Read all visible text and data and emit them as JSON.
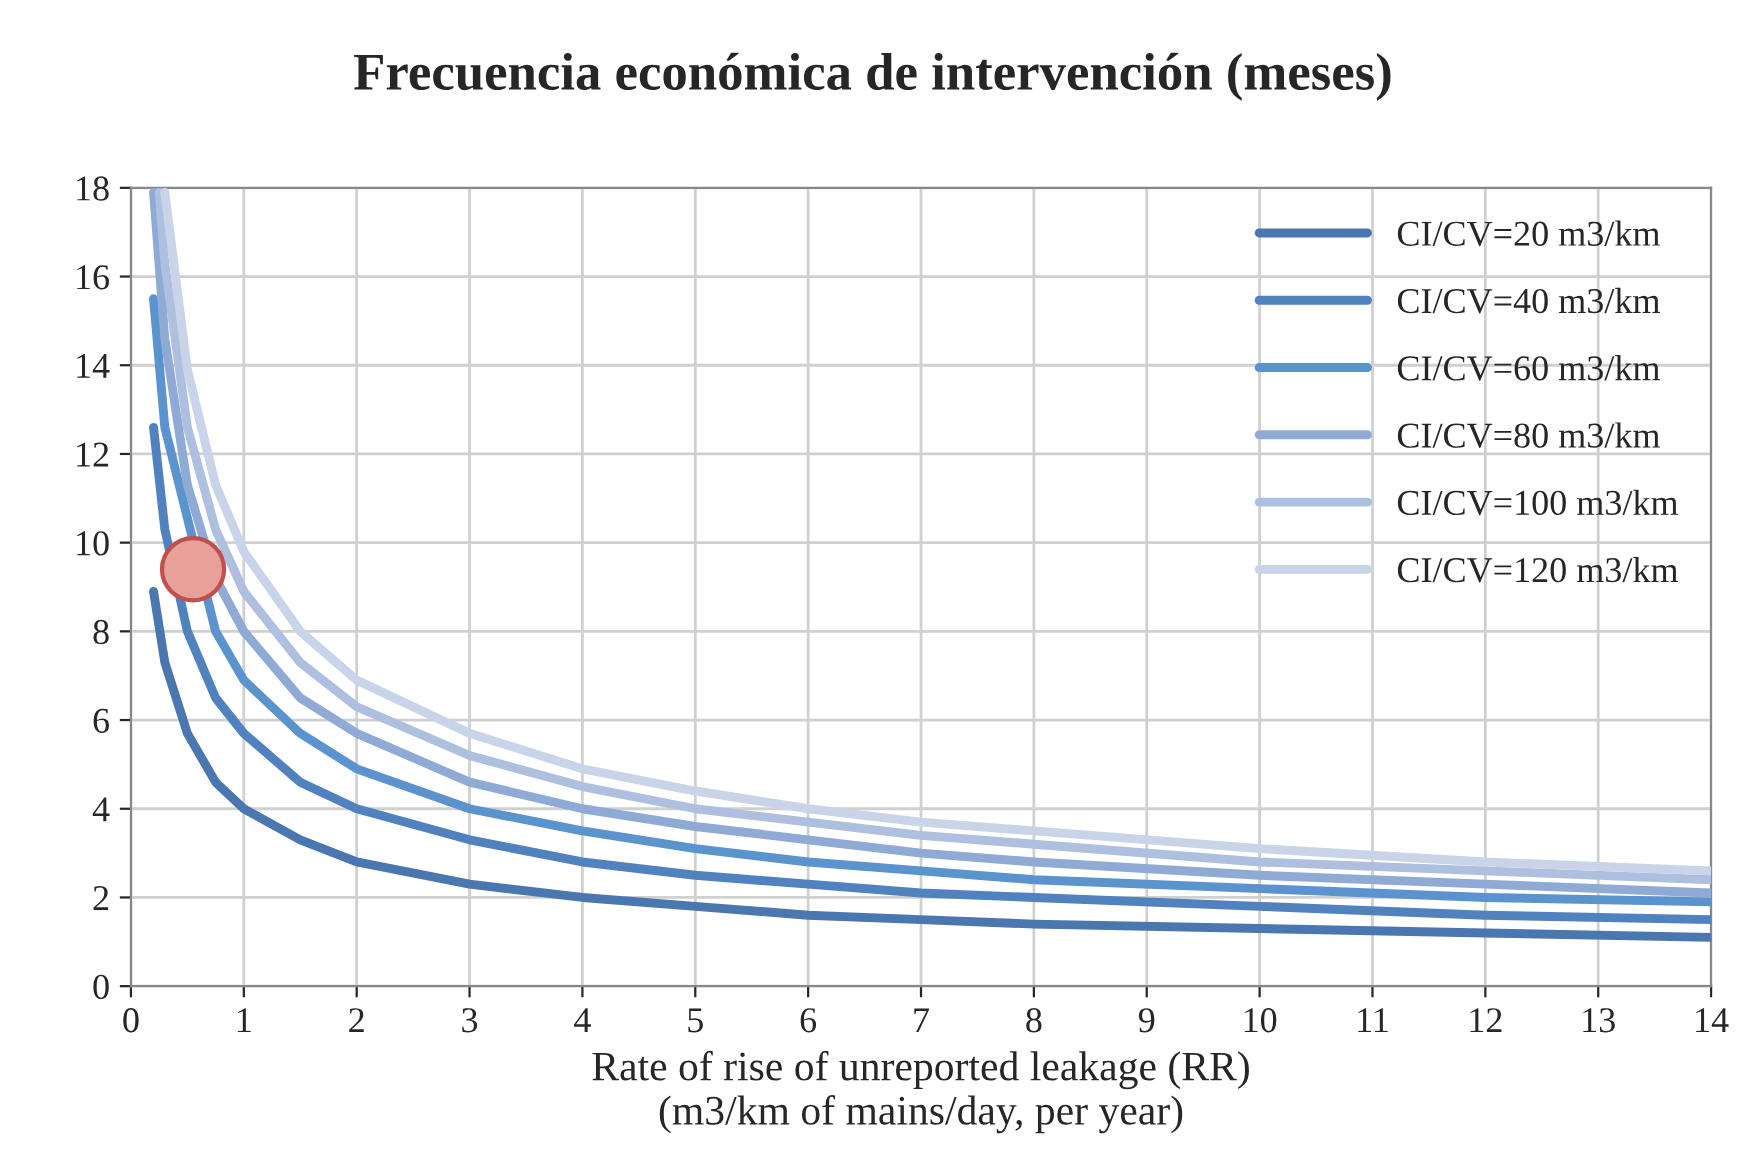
{
  "chart_data": {
    "type": "line",
    "title": "Frecuencia económica de intervención (meses)",
    "xlabel": "Rate of rise of unreported leakage (RR)\n(m3/km of mains/day, per year)",
    "xlim": [
      0,
      14
    ],
    "xticks": [
      0,
      1,
      2,
      3,
      4,
      5,
      6,
      7,
      8,
      9,
      10,
      11,
      12,
      13,
      14
    ],
    "ylim": [
      0,
      18
    ],
    "yticks": [
      0,
      2,
      4,
      6,
      8,
      10,
      12,
      14,
      16,
      18
    ],
    "grid": true,
    "legend": "top right",
    "marker": "none",
    "line_style": "solid",
    "series": [
      {
        "name": "CI/CV=20 m3/km",
        "color": "#4a77b0",
        "x": [
          0.2,
          0.3,
          0.5,
          0.75,
          1,
          1.5,
          2,
          3,
          4,
          5,
          6,
          7,
          8,
          10,
          12,
          14
        ],
        "values": [
          8.9,
          7.3,
          5.7,
          4.6,
          4.0,
          3.3,
          2.8,
          2.3,
          2.0,
          1.8,
          1.6,
          1.5,
          1.4,
          1.3,
          1.2,
          1.1
        ]
      },
      {
        "name": "CI/CV=40 m3/km",
        "color": "#4f82be",
        "x": [
          0.2,
          0.3,
          0.5,
          0.75,
          1,
          1.5,
          2,
          3,
          4,
          5,
          6,
          7,
          8,
          10,
          12,
          14
        ],
        "values": [
          12.6,
          10.3,
          8.0,
          6.5,
          5.7,
          4.6,
          4.0,
          3.3,
          2.8,
          2.5,
          2.3,
          2.1,
          2.0,
          1.8,
          1.6,
          1.5
        ]
      },
      {
        "name": "CI/CV=60 m3/km",
        "color": "#5b93cf",
        "x": [
          0.2,
          0.3,
          0.75,
          1,
          1.5,
          2,
          3,
          4,
          5,
          6,
          7,
          8,
          10,
          12,
          14
        ],
        "values": [
          15.5,
          12.6,
          8.0,
          6.9,
          5.7,
          4.9,
          4.0,
          3.5,
          3.1,
          2.8,
          2.6,
          2.4,
          2.2,
          2.0,
          1.9
        ]
      },
      {
        "name": "CI/CV=80 m3/km",
        "color": "#8eaad5",
        "x": [
          0.2,
          0.3,
          0.5,
          0.75,
          1,
          1.5,
          2,
          3,
          4,
          5,
          6,
          7,
          8,
          10,
          12,
          14
        ],
        "values": [
          17.9,
          14.6,
          11.3,
          9.2,
          8.0,
          6.5,
          5.7,
          4.6,
          4.0,
          3.6,
          3.3,
          3.0,
          2.8,
          2.5,
          2.3,
          2.1
        ]
      },
      {
        "name": "CI/CV=100 m3/km",
        "color": "#aebfdf",
        "x": [
          0.25,
          0.3,
          0.5,
          0.75,
          1,
          1.5,
          2,
          3,
          4,
          5,
          6,
          7,
          8,
          10,
          12,
          14
        ],
        "values": [
          17.9,
          16.3,
          12.6,
          10.3,
          8.9,
          7.3,
          6.3,
          5.2,
          4.5,
          4.0,
          3.7,
          3.4,
          3.2,
          2.8,
          2.6,
          2.4
        ]
      },
      {
        "name": "CI/CV=120 m3/km",
        "color": "#c9d4e9",
        "x": [
          0.3,
          0.5,
          0.75,
          1,
          1.5,
          2,
          3,
          4,
          5,
          6,
          7,
          8,
          10,
          12,
          14
        ],
        "values": [
          17.9,
          13.9,
          11.3,
          9.8,
          8.0,
          6.9,
          5.7,
          4.9,
          4.4,
          4.0,
          3.7,
          3.5,
          3.1,
          2.8,
          2.6
        ]
      },
      {
        "type": "scatter",
        "color": "#e8a09a",
        "x": [
          0.55
        ],
        "values": [
          9.4
        ],
        "marker": "circle"
      }
    ]
  }
}
